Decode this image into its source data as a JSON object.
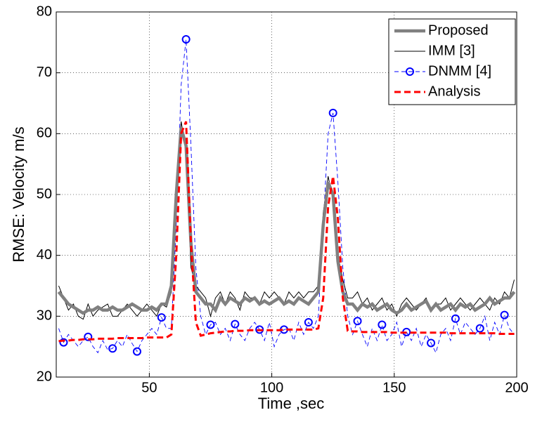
{
  "chart_data": {
    "type": "line",
    "x_label": "Time ,sec",
    "y_label": "RMSE: Velocity m/s",
    "xlim": [
      12,
      200
    ],
    "ylim": [
      20,
      80
    ],
    "xticks": [
      50,
      100,
      150,
      200
    ],
    "yticks": [
      20,
      30,
      40,
      50,
      60,
      70,
      80
    ],
    "grid": true,
    "legend": "upper right",
    "x": [
      13,
      15,
      17,
      19,
      21,
      23,
      25,
      27,
      29,
      31,
      33,
      35,
      37,
      39,
      41,
      43,
      45,
      47,
      49,
      51,
      53,
      55,
      57,
      59,
      61,
      63,
      65,
      67,
      69,
      71,
      73,
      75,
      77,
      79,
      81,
      83,
      85,
      87,
      89,
      91,
      93,
      95,
      97,
      99,
      101,
      103,
      105,
      107,
      109,
      111,
      113,
      115,
      117,
      119,
      121,
      123,
      125,
      127,
      129,
      131,
      133,
      135,
      137,
      139,
      141,
      143,
      145,
      147,
      149,
      151,
      153,
      155,
      157,
      159,
      161,
      163,
      165,
      167,
      169,
      171,
      173,
      175,
      177,
      179,
      181,
      183,
      185,
      187,
      189,
      191,
      193,
      195,
      197,
      199
    ],
    "series": [
      {
        "name": "Proposed",
        "color": "#808080",
        "style": "solid",
        "values": [
          34,
          33,
          32,
          31.5,
          31,
          30.5,
          31,
          31,
          31.5,
          31,
          31,
          31.5,
          31,
          31,
          31.5,
          32,
          31.5,
          31,
          31,
          31.5,
          31,
          32,
          32,
          35,
          50,
          61,
          58,
          42,
          34,
          33,
          32,
          32,
          31,
          33,
          32,
          33,
          32.5,
          32,
          33,
          32.5,
          33,
          32,
          32.5,
          32,
          32.5,
          33,
          32,
          32.5,
          32,
          33,
          32.5,
          32,
          33,
          34,
          45,
          52,
          50,
          39,
          34,
          32,
          32,
          31,
          32,
          31.5,
          32,
          31,
          31.5,
          32,
          31,
          30.5,
          31,
          32,
          31,
          31.5,
          32,
          32.5,
          31,
          32,
          31,
          31.5,
          32,
          31,
          32,
          31.5,
          32,
          31,
          31.5,
          32,
          33,
          32,
          32.5,
          33,
          33,
          34
        ]
      },
      {
        "name": "IMM [3]",
        "color": "#000000",
        "style": "solid",
        "values": [
          35,
          33,
          31,
          32,
          30,
          29.5,
          32,
          30,
          31,
          31.5,
          32,
          30,
          30,
          31,
          32,
          31,
          30,
          31,
          32,
          31,
          30,
          32,
          31.5,
          34,
          52,
          62,
          57,
          38,
          35,
          34,
          33,
          30,
          33,
          34,
          32,
          34,
          33,
          31,
          34,
          33,
          33,
          32,
          34,
          33,
          34,
          33,
          32,
          34,
          33,
          34,
          33,
          34,
          34,
          35,
          47,
          53,
          49,
          40,
          36,
          33,
          33,
          34,
          32,
          33,
          31,
          32,
          33,
          31,
          32,
          30,
          32,
          33,
          32,
          31,
          32,
          33,
          31,
          32,
          32,
          33,
          31,
          32,
          33,
          32,
          31,
          32,
          33,
          32,
          31,
          33,
          32,
          34,
          33,
          36
        ]
      },
      {
        "name": "DNMM [4]",
        "color": "#0000ff",
        "style": "dashed",
        "marker": "o",
        "values": [
          28,
          25.7,
          27,
          26,
          25,
          26,
          26.6,
          25,
          24,
          26,
          24.5,
          24.7,
          26,
          25,
          27,
          25.5,
          24.2,
          26,
          27,
          28,
          27,
          29.8,
          28,
          28,
          45,
          68,
          75.5,
          58,
          38,
          30,
          27,
          28.6,
          29,
          27,
          28,
          26,
          28.7,
          27,
          26,
          28,
          29,
          27.8,
          26,
          29,
          25,
          27,
          27.8,
          28,
          26,
          29,
          27,
          29,
          28,
          30,
          45,
          60,
          63.4,
          52,
          38,
          30,
          27,
          29.2,
          27,
          25,
          28,
          26,
          28.6,
          26,
          27,
          29,
          25,
          27.4,
          26,
          28,
          25,
          27,
          25.6,
          24,
          27,
          28,
          26,
          29.6,
          27,
          29,
          28,
          27,
          28,
          30,
          26,
          29,
          27,
          30.2,
          28,
          27
        ]
      },
      {
        "name": "Analysis",
        "color": "#ff0000",
        "style": "dashed",
        "values": [
          25.9,
          26,
          26,
          26.1,
          26.1,
          26.2,
          26.2,
          26.2,
          26.3,
          26.3,
          26.3,
          26.3,
          26.4,
          26.4,
          26.4,
          26.4,
          26.4,
          26.4,
          26.5,
          26.5,
          26.5,
          26.5,
          26.5,
          27,
          40,
          60,
          62,
          42,
          29,
          26.8,
          27,
          27.2,
          27.3,
          27.4,
          27.5,
          27.5,
          27.6,
          27.6,
          27.6,
          27.7,
          27.7,
          27.7,
          27.7,
          27.7,
          27.7,
          27.7,
          27.8,
          27.8,
          27.8,
          27.8,
          27.8,
          27.8,
          27.8,
          28,
          33,
          48,
          53,
          46,
          33,
          27.6,
          27.5,
          27.5,
          27.4,
          27.4,
          27.4,
          27.4,
          27.4,
          27.4,
          27.3,
          27.3,
          27.3,
          27.3,
          27.3,
          27.3,
          27.3,
          27.3,
          27.3,
          27.3,
          27.3,
          27.3,
          27.2,
          27.2,
          27.2,
          27.2,
          27.2,
          27.2,
          27.2,
          27.2,
          27.2,
          27.2,
          27.1,
          27.1,
          27.1,
          27.1
        ]
      }
    ]
  }
}
